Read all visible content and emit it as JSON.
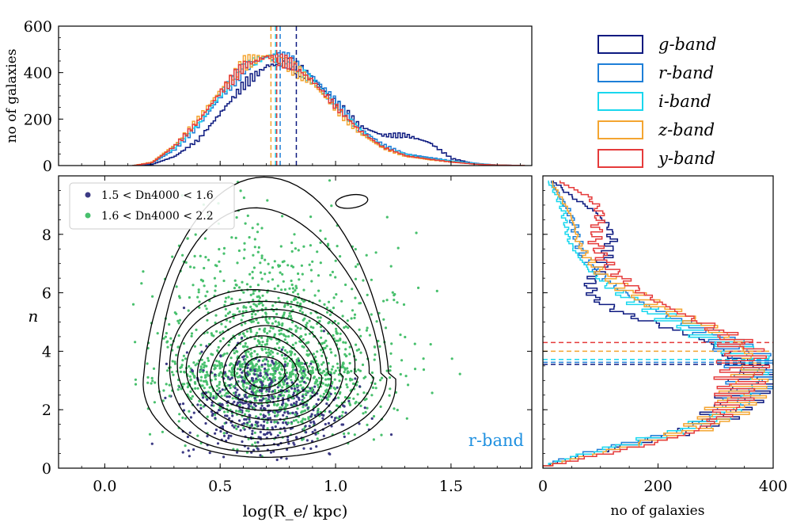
{
  "chart_data": [
    {
      "type": "histogram",
      "panel": "top",
      "ylabel": "no of galaxies",
      "xlim": [
        -0.2,
        1.85
      ],
      "ylim": [
        0,
        600
      ],
      "yticks": [
        0,
        200,
        400,
        600
      ],
      "medians": {
        "g": 0.83,
        "r": 0.76,
        "i": 0.74,
        "z": 0.72,
        "y": 0.745
      },
      "series": [
        {
          "name": "g-band",
          "color": "#0d1a80",
          "x": [
            0.2,
            0.3,
            0.4,
            0.5,
            0.6,
            0.7,
            0.8,
            0.9,
            1.0,
            1.1,
            1.2,
            1.3,
            1.4,
            1.5,
            1.6,
            1.7
          ],
          "values": [
            5,
            40,
            110,
            230,
            350,
            430,
            440,
            370,
            270,
            170,
            130,
            130,
            100,
            30,
            8,
            2
          ]
        },
        {
          "name": "r-band",
          "color": "#1e7fd8",
          "x": [
            0.2,
            0.3,
            0.4,
            0.5,
            0.6,
            0.7,
            0.8,
            0.9,
            1.0,
            1.1,
            1.2,
            1.3,
            1.4,
            1.5,
            1.6,
            1.7
          ],
          "values": [
            10,
            70,
            170,
            300,
            420,
            470,
            450,
            380,
            270,
            160,
            90,
            50,
            35,
            20,
            10,
            2
          ]
        },
        {
          "name": "i-band",
          "color": "#19d7ee",
          "x": [
            0.2,
            0.3,
            0.4,
            0.5,
            0.6,
            0.7,
            0.8,
            0.9,
            1.0,
            1.1,
            1.2,
            1.3,
            1.4,
            1.5,
            1.6,
            1.7
          ],
          "values": [
            12,
            80,
            180,
            310,
            430,
            470,
            440,
            360,
            250,
            150,
            80,
            45,
            30,
            18,
            8,
            2
          ]
        },
        {
          "name": "z-band",
          "color": "#f4a531",
          "x": [
            0.2,
            0.3,
            0.4,
            0.5,
            0.6,
            0.7,
            0.8,
            0.9,
            1.0,
            1.1,
            1.2,
            1.3,
            1.4,
            1.5,
            1.6,
            1.7
          ],
          "values": [
            15,
            90,
            200,
            330,
            440,
            475,
            430,
            350,
            240,
            140,
            75,
            40,
            25,
            15,
            6,
            2
          ]
        },
        {
          "name": "y-band",
          "color": "#e53b3b",
          "x": [
            0.2,
            0.3,
            0.4,
            0.5,
            0.6,
            0.7,
            0.8,
            0.9,
            1.0,
            1.1,
            1.2,
            1.3,
            1.4,
            1.5,
            1.6,
            1.7
          ],
          "values": [
            12,
            85,
            190,
            320,
            430,
            470,
            440,
            360,
            250,
            150,
            80,
            42,
            28,
            15,
            6,
            2
          ]
        }
      ]
    },
    {
      "type": "scatter",
      "panel": "main",
      "xlabel": "log(R_e/ kpc)",
      "ylabel": "n",
      "xlim": [
        -0.2,
        1.85
      ],
      "ylim": [
        0,
        10
      ],
      "xticks": [
        0.0,
        0.5,
        1.0,
        1.5
      ],
      "xtick_labels": [
        "0.0",
        "0.5",
        "1.0",
        "1.5"
      ],
      "yticks": [
        0,
        2,
        4,
        6,
        8
      ],
      "note": "r-band",
      "note_color": "#1e90e0",
      "series": [
        {
          "name": "1.5 < Dn4000 < 1.6",
          "color": "#3c3a84",
          "center": [
            0.68,
            2.1
          ],
          "spread": [
            0.17,
            0.95
          ]
        },
        {
          "name": "1.6 < Dn4000 < 2.2",
          "color": "#48c06d",
          "center": [
            0.72,
            3.6
          ],
          "spread": [
            0.25,
            1.8
          ]
        }
      ],
      "contours": {
        "center": [
          0.69,
          3.25
        ],
        "levels": 10,
        "outer_x": [
          0.17,
          1.23
        ],
        "outer_y": [
          0.25,
          9.7
        ],
        "extra_island": {
          "x": [
            1.0,
            1.14
          ],
          "y": [
            8.9,
            9.35
          ]
        }
      }
    },
    {
      "type": "histogram",
      "panel": "right",
      "orientation": "horizontal",
      "xlabel": "no of galaxies",
      "xlim": [
        0,
        400
      ],
      "ylim": [
        0,
        10
      ],
      "xticks": [
        0,
        200,
        400
      ],
      "medians": {
        "g": 3.55,
        "r": 3.62,
        "i": 3.72,
        "z": 4.0,
        "y": 4.3
      },
      "series": [
        {
          "name": "g-band",
          "color": "#0d1a80",
          "y": [
            0.25,
            0.75,
            1.25,
            1.75,
            2.25,
            2.75,
            3.25,
            3.75,
            4.25,
            4.75,
            5.25,
            5.75,
            6.25,
            6.75,
            7.25,
            7.75,
            8.25,
            8.75,
            9.25,
            9.75
          ],
          "values": [
            40,
            150,
            260,
            310,
            340,
            360,
            370,
            330,
            290,
            220,
            140,
            90,
            80,
            100,
            110,
            120,
            115,
            90,
            50,
            20
          ]
        },
        {
          "name": "r-band",
          "color": "#1e7fd8",
          "y": [
            0.25,
            0.75,
            1.25,
            1.75,
            2.25,
            2.75,
            3.25,
            3.75,
            4.25,
            4.75,
            5.25,
            5.75,
            6.25,
            6.75,
            7.25,
            7.75,
            8.25,
            8.75,
            9.25,
            9.75
          ],
          "values": [
            30,
            130,
            240,
            300,
            340,
            360,
            370,
            360,
            320,
            270,
            210,
            160,
            120,
            90,
            70,
            60,
            55,
            45,
            30,
            15
          ]
        },
        {
          "name": "i-band",
          "color": "#19d7ee",
          "y": [
            0.25,
            0.75,
            1.25,
            1.75,
            2.25,
            2.75,
            3.25,
            3.75,
            4.25,
            4.75,
            5.25,
            5.75,
            6.25,
            6.75,
            7.25,
            7.75,
            8.25,
            8.75,
            9.25,
            9.75
          ],
          "values": [
            35,
            140,
            250,
            310,
            345,
            365,
            375,
            360,
            320,
            260,
            200,
            150,
            110,
            80,
            60,
            45,
            40,
            35,
            25,
            10
          ]
        },
        {
          "name": "z-band",
          "color": "#f4a531",
          "y": [
            0.25,
            0.75,
            1.25,
            1.75,
            2.25,
            2.75,
            3.25,
            3.75,
            4.25,
            4.75,
            5.25,
            5.75,
            6.25,
            6.75,
            7.25,
            7.75,
            8.25,
            8.75,
            9.25,
            9.75
          ],
          "values": [
            50,
            160,
            260,
            310,
            340,
            355,
            360,
            360,
            340,
            290,
            230,
            175,
            130,
            95,
            75,
            60,
            55,
            45,
            30,
            15
          ]
        },
        {
          "name": "y-band",
          "color": "#e53b3b",
          "y": [
            0.25,
            0.75,
            1.25,
            1.75,
            2.25,
            2.75,
            3.25,
            3.75,
            4.25,
            4.75,
            5.25,
            5.75,
            6.25,
            6.75,
            7.25,
            7.75,
            8.25,
            8.75,
            9.25,
            9.75
          ],
          "values": [
            60,
            180,
            270,
            310,
            330,
            340,
            345,
            350,
            340,
            300,
            240,
            190,
            150,
            120,
            100,
            90,
            95,
            100,
            80,
            30
          ]
        }
      ]
    }
  ],
  "legend": {
    "items": [
      {
        "label": "g-band",
        "color": "#0d1a80"
      },
      {
        "label": "r-band",
        "color": "#1e7fd8"
      },
      {
        "label": "i-band",
        "color": "#19d7ee"
      },
      {
        "label": "z-band",
        "color": "#f4a531"
      },
      {
        "label": "y-band",
        "color": "#e53b3b"
      }
    ]
  },
  "scatter_legend": {
    "items": [
      {
        "label": "1.5 < Dn4000 < 1.6",
        "color": "#3c3a84"
      },
      {
        "label": "1.6 < Dn4000 < 2.2",
        "color": "#48c06d"
      }
    ]
  }
}
